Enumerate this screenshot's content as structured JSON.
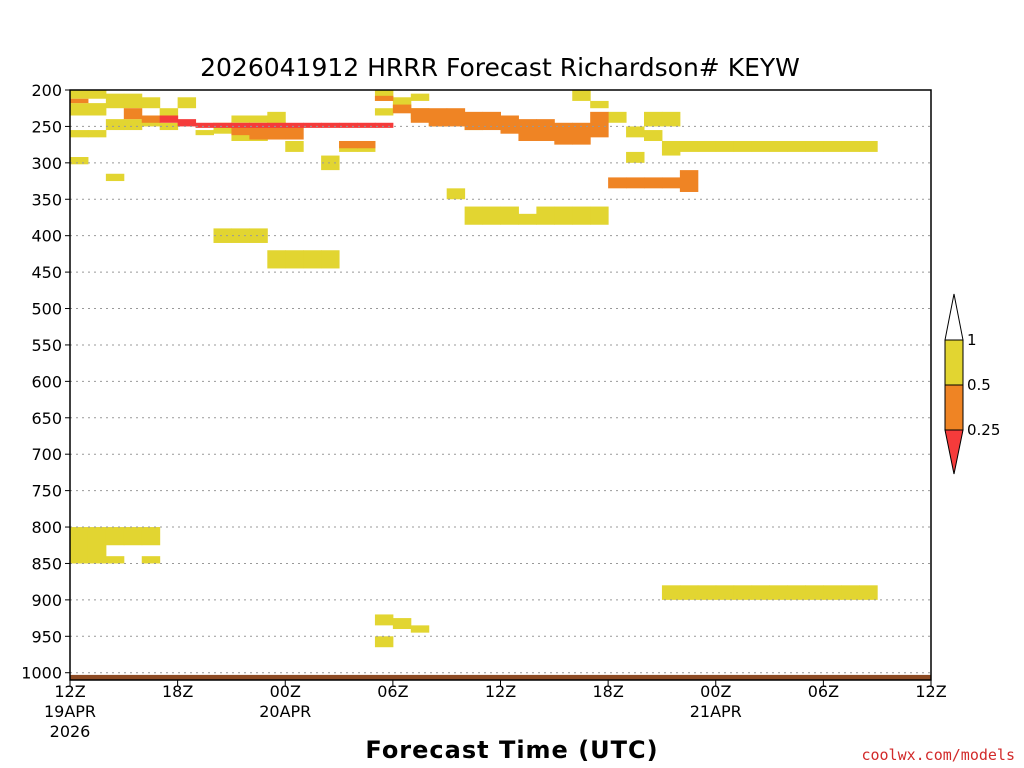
{
  "chart_data": {
    "type": "heatmap",
    "title": "2026041912 HRRR Forecast Richardson# KEYW",
    "xlabel": "Forecast Time (UTC)",
    "ylabel": "",
    "credit": "coolwx.com/models",
    "y_levels": [
      "200",
      "250",
      "300",
      "350",
      "400",
      "450",
      "500",
      "550",
      "600",
      "650",
      "700",
      "750",
      "800",
      "850",
      "900",
      "950",
      "1000"
    ],
    "x_ticks": [
      {
        "label": "12Z",
        "date": "19APR",
        "year": "2026",
        "hour": 0
      },
      {
        "label": "18Z",
        "date": "",
        "year": "",
        "hour": 6
      },
      {
        "label": "00Z",
        "date": "20APR",
        "year": "",
        "hour": 12
      },
      {
        "label": "06Z",
        "date": "",
        "year": "",
        "hour": 18
      },
      {
        "label": "12Z",
        "date": "",
        "year": "",
        "hour": 24
      },
      {
        "label": "18Z",
        "date": "",
        "year": "",
        "hour": 30
      },
      {
        "label": "00Z",
        "date": "21APR",
        "year": "",
        "hour": 36
      },
      {
        "label": "06Z",
        "date": "",
        "year": "",
        "hour": 42
      },
      {
        "label": "12Z",
        "date": "",
        "year": "",
        "hour": 48
      }
    ],
    "colorbar": {
      "labels": [
        "1",
        "0.5",
        "0.25"
      ],
      "bins": [
        {
          "range": "<0.25",
          "color": "#f53b3b"
        },
        {
          "range": "0.25-0.5",
          "color": "#ef8424"
        },
        {
          "range": "0.5-1",
          "color": "#e2d531"
        },
        {
          "range": ">1",
          "color": "#ffffff"
        }
      ]
    },
    "series": [
      {
        "color": "#e2d531",
        "cells": [
          [
            0,
            200,
            212
          ],
          [
            0,
            218,
            235
          ],
          [
            0,
            255,
            265
          ],
          [
            0,
            292,
            302
          ],
          [
            0,
            800,
            850
          ],
          [
            1,
            200,
            212
          ],
          [
            1,
            218,
            235
          ],
          [
            1,
            255,
            265
          ],
          [
            1,
            800,
            850
          ],
          [
            2,
            205,
            225
          ],
          [
            2,
            240,
            255
          ],
          [
            2,
            315,
            325
          ],
          [
            2,
            800,
            825
          ],
          [
            2,
            840,
            850
          ],
          [
            3,
            205,
            225
          ],
          [
            3,
            240,
            255
          ],
          [
            3,
            800,
            825
          ],
          [
            4,
            210,
            225
          ],
          [
            4,
            235,
            250
          ],
          [
            4,
            800,
            825
          ],
          [
            4,
            840,
            850
          ],
          [
            5,
            225,
            240
          ],
          [
            5,
            245,
            255
          ],
          [
            6,
            210,
            225
          ],
          [
            7,
            255,
            262
          ],
          [
            8,
            245,
            260
          ],
          [
            8,
            390,
            410
          ],
          [
            9,
            235,
            245
          ],
          [
            9,
            260,
            270
          ],
          [
            9,
            390,
            410
          ],
          [
            10,
            235,
            245
          ],
          [
            10,
            260,
            270
          ],
          [
            10,
            390,
            410
          ],
          [
            11,
            230,
            250
          ],
          [
            11,
            420,
            445
          ],
          [
            12,
            270,
            285
          ],
          [
            12,
            420,
            445
          ],
          [
            13,
            420,
            445
          ],
          [
            14,
            290,
            310
          ],
          [
            14,
            420,
            445
          ],
          [
            15,
            270,
            285
          ],
          [
            16,
            270,
            285
          ],
          [
            17,
            200,
            215
          ],
          [
            17,
            225,
            235
          ],
          [
            17,
            920,
            935
          ],
          [
            17,
            950,
            965
          ],
          [
            18,
            210,
            225
          ],
          [
            18,
            925,
            940
          ],
          [
            19,
            205,
            215
          ],
          [
            19,
            225,
            240
          ],
          [
            19,
            935,
            945
          ],
          [
            20,
            240,
            250
          ],
          [
            21,
            335,
            350
          ],
          [
            22,
            245,
            255
          ],
          [
            22,
            360,
            385
          ],
          [
            23,
            360,
            385
          ],
          [
            24,
            360,
            385
          ],
          [
            25,
            370,
            385
          ],
          [
            25,
            250,
            260
          ],
          [
            26,
            360,
            385
          ],
          [
            27,
            360,
            385
          ],
          [
            28,
            200,
            215
          ],
          [
            28,
            360,
            385
          ],
          [
            29,
            215,
            225
          ],
          [
            29,
            360,
            385
          ],
          [
            30,
            230,
            245
          ],
          [
            31,
            250,
            265
          ],
          [
            31,
            285,
            300
          ],
          [
            32,
            230,
            250
          ],
          [
            32,
            255,
            270
          ],
          [
            33,
            230,
            250
          ],
          [
            33,
            270,
            290
          ],
          [
            33,
            880,
            900
          ],
          [
            34,
            270,
            285
          ],
          [
            34,
            880,
            900
          ],
          [
            35,
            270,
            285
          ],
          [
            35,
            880,
            900
          ],
          [
            36,
            270,
            285
          ],
          [
            36,
            880,
            900
          ],
          [
            37,
            270,
            285
          ],
          [
            37,
            880,
            900
          ],
          [
            38,
            270,
            285
          ],
          [
            38,
            880,
            900
          ],
          [
            39,
            270,
            285
          ],
          [
            39,
            880,
            900
          ],
          [
            40,
            270,
            285
          ],
          [
            40,
            880,
            900
          ],
          [
            41,
            270,
            285
          ],
          [
            41,
            880,
            900
          ],
          [
            42,
            270,
            285
          ],
          [
            42,
            880,
            900
          ],
          [
            43,
            270,
            285
          ],
          [
            43,
            880,
            900
          ],
          [
            44,
            270,
            285
          ],
          [
            44,
            880,
            900
          ]
        ]
      },
      {
        "color": "#ef8424",
        "cells": [
          [
            0,
            212,
            218
          ],
          [
            3,
            225,
            240
          ],
          [
            4,
            235,
            245
          ],
          [
            9,
            250,
            262
          ],
          [
            10,
            250,
            268
          ],
          [
            11,
            250,
            268
          ],
          [
            12,
            250,
            268
          ],
          [
            15,
            270,
            280
          ],
          [
            16,
            270,
            280
          ],
          [
            17,
            208,
            215
          ],
          [
            18,
            220,
            232
          ],
          [
            19,
            225,
            245
          ],
          [
            20,
            225,
            250
          ],
          [
            21,
            225,
            250
          ],
          [
            22,
            230,
            255
          ],
          [
            23,
            230,
            255
          ],
          [
            24,
            235,
            260
          ],
          [
            25,
            240,
            270
          ],
          [
            26,
            240,
            270
          ],
          [
            27,
            245,
            275
          ],
          [
            28,
            245,
            275
          ],
          [
            29,
            230,
            265
          ],
          [
            30,
            320,
            335
          ],
          [
            31,
            320,
            335
          ],
          [
            32,
            320,
            335
          ],
          [
            33,
            320,
            335
          ],
          [
            34,
            310,
            340
          ]
        ]
      },
      {
        "color": "#f53b3b",
        "cells": [
          [
            5,
            235,
            245
          ],
          [
            6,
            240,
            250
          ],
          [
            7,
            245,
            252
          ],
          [
            8,
            245,
            252
          ],
          [
            9,
            245,
            252
          ],
          [
            10,
            245,
            252
          ],
          [
            11,
            245,
            252
          ],
          [
            12,
            245,
            252
          ],
          [
            13,
            245,
            252
          ],
          [
            14,
            245,
            252
          ],
          [
            15,
            245,
            252
          ],
          [
            16,
            245,
            252
          ],
          [
            17,
            245,
            252
          ]
        ]
      }
    ]
  }
}
